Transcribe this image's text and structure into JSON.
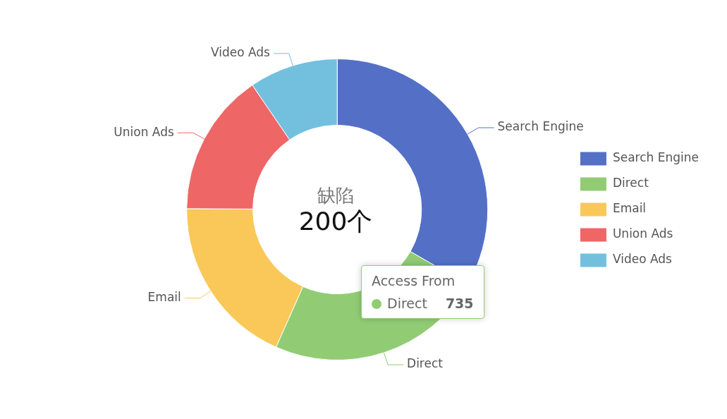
{
  "chart_data": {
    "type": "donut",
    "categories": [
      "Search Engine",
      "Direct",
      "Email",
      "Union Ads",
      "Video Ads"
    ],
    "values": [
      1048,
      735,
      580,
      484,
      300
    ],
    "colors": [
      "#5470c6",
      "#91cc75",
      "#fac858",
      "#ee6666",
      "#73c0de"
    ],
    "value_labels": [
      null,
      "735",
      null,
      null,
      null
    ],
    "annotations": [
      "缺陷",
      "200个",
      "Access From"
    ],
    "legend": "right"
  }
}
